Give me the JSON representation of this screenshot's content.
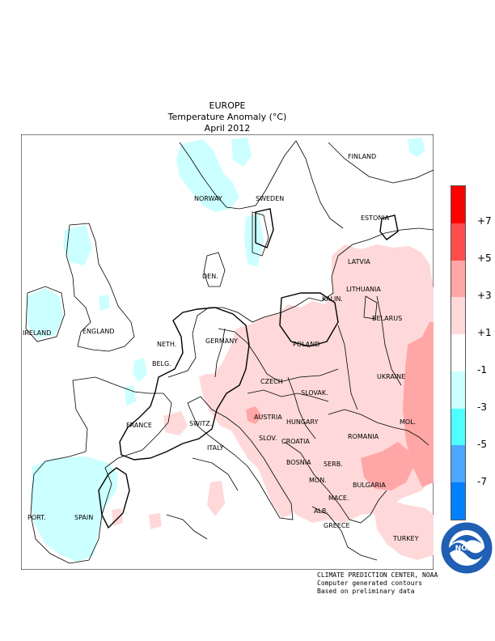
{
  "title": {
    "line1": "EUROPE",
    "line2": "Temperature Anomaly (°C)",
    "line3": "April 2012"
  },
  "countries": {
    "finland": "FINLAND",
    "norway": "NORWAY",
    "sweden": "SWEDEN",
    "estonia": "ESTONIA",
    "latvia": "LATVIA",
    "lithuania": "LITHUANIA",
    "kalin": "KALIN.",
    "den": "DEN.",
    "ireland": "IRELAND",
    "england": "ENGLAND",
    "neth": "NETH.",
    "belg": "BELG.",
    "germany": "GERMANY",
    "poland": "POLAND",
    "belarus": "BELARUS",
    "czech": "CZECH",
    "slovak": "SLOVAK.",
    "ukraine": "UKRAINE",
    "austria": "AUSTRIA",
    "hungary": "HUNGARY",
    "mol": "MOL.",
    "france": "FRANCE",
    "switz": "SWITZ.",
    "slov": "SLOV.",
    "croatia": "CROATIA",
    "romania": "ROMANIA",
    "italy": "ITALY",
    "bosnia": "BOSNIA",
    "serb": "SERB.",
    "bulgaria": "BULGARIA",
    "mon": "MON.",
    "mace": "MACE.",
    "port": "PORT.",
    "spain": "SPAIN",
    "alb": "ALB.",
    "greece": "GREECE",
    "turkey": "TURKEY"
  },
  "legend": {
    "colors": [
      "#ff0000",
      "#ff4d4d",
      "#ffa6a6",
      "#ffd9d9",
      "#ffffff",
      "#ccffff",
      "#4dffff",
      "#4da6ff",
      "#0080ff"
    ],
    "ticks": [
      "+7",
      "+5",
      "+3",
      "+1",
      "-1",
      "-3",
      "-5",
      "-7"
    ]
  },
  "credits": {
    "line1": "CLIMATE PREDICTION CENTER, NOAA",
    "line2": "Computer generated contours",
    "line3": "Based on preliminary data"
  },
  "logo": {
    "text": "NOAA"
  }
}
